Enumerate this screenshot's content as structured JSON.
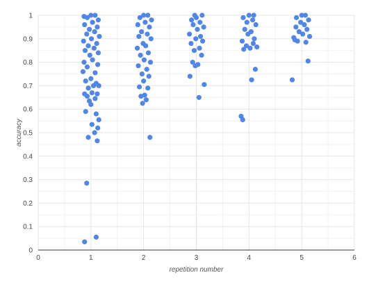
{
  "chart_data": {
    "type": "scatter",
    "title": "",
    "xlabel": "repetition number",
    "ylabel": "accuracy",
    "xlim": [
      0,
      6
    ],
    "ylim": [
      0,
      1
    ],
    "x_ticks": [
      "0",
      "1",
      "2",
      "3",
      "4",
      "5",
      "6"
    ],
    "y_ticks": [
      "0",
      "0.1",
      "0.2",
      "0.3",
      "0.4",
      "0.5",
      "0.6",
      "0.7",
      "0.8",
      "0.9",
      "1"
    ],
    "grid": true,
    "legend": "none",
    "series": [
      {
        "color": "#4f86e8",
        "points": [
          [
            0.88,
            0.035
          ],
          [
            1.1,
            0.055
          ],
          [
            0.92,
            0.285
          ],
          [
            1.12,
            0.465
          ],
          [
            0.95,
            0.48
          ],
          [
            1.07,
            0.5
          ],
          [
            1.13,
            0.52
          ],
          [
            1.02,
            0.535
          ],
          [
            1.15,
            0.555
          ],
          [
            0.9,
            0.59
          ],
          [
            1.1,
            0.58
          ],
          [
            1.0,
            0.62
          ],
          [
            0.97,
            0.635
          ],
          [
            1.08,
            0.645
          ],
          [
            0.93,
            0.655
          ],
          [
            1.12,
            0.665
          ],
          [
            0.88,
            0.665
          ],
          [
            1.02,
            0.67
          ],
          [
            1.05,
            0.7
          ],
          [
            0.95,
            0.69
          ],
          [
            1.15,
            0.7
          ],
          [
            0.9,
            0.72
          ],
          [
            1.1,
            0.71
          ],
          [
            1.0,
            0.73
          ],
          [
            0.85,
            0.76
          ],
          [
            1.08,
            0.755
          ],
          [
            0.93,
            0.78
          ],
          [
            1.13,
            0.79
          ],
          [
            0.87,
            0.8
          ],
          [
            1.03,
            0.81
          ],
          [
            0.98,
            0.83
          ],
          [
            1.14,
            0.84
          ],
          [
            0.89,
            0.85
          ],
          [
            1.06,
            0.86
          ],
          [
            0.95,
            0.87
          ],
          [
            1.11,
            0.88
          ],
          [
            0.86,
            0.89
          ],
          [
            1.01,
            0.9
          ],
          [
            1.16,
            0.91
          ],
          [
            0.92,
            0.92
          ],
          [
            1.07,
            0.93
          ],
          [
            0.97,
            0.94
          ],
          [
            1.12,
            0.95
          ],
          [
            0.88,
            0.96
          ],
          [
            1.03,
            0.97
          ],
          [
            1.14,
            0.98
          ],
          [
            0.93,
            0.99
          ],
          [
            1.0,
            1.0
          ],
          [
            1.08,
            1.0
          ],
          [
            0.87,
            0.995
          ],
          [
            2.12,
            0.48
          ],
          [
            1.98,
            0.625
          ],
          [
            2.05,
            0.64
          ],
          [
            1.95,
            0.655
          ],
          [
            2.02,
            0.66
          ],
          [
            2.08,
            0.69
          ],
          [
            1.92,
            0.695
          ],
          [
            2.0,
            0.72
          ],
          [
            2.1,
            0.74
          ],
          [
            1.97,
            0.75
          ],
          [
            2.06,
            0.77
          ],
          [
            1.9,
            0.785
          ],
          [
            2.13,
            0.8
          ],
          [
            2.01,
            0.81
          ],
          [
            1.94,
            0.83
          ],
          [
            2.09,
            0.84
          ],
          [
            1.88,
            0.86
          ],
          [
            2.04,
            0.87
          ],
          [
            1.99,
            0.88
          ],
          [
            2.14,
            0.9
          ],
          [
            1.91,
            0.91
          ],
          [
            2.07,
            0.92
          ],
          [
            1.96,
            0.93
          ],
          [
            2.11,
            0.95
          ],
          [
            1.89,
            0.96
          ],
          [
            2.03,
            0.97
          ],
          [
            2.15,
            0.98
          ],
          [
            1.93,
            0.99
          ],
          [
            2.0,
            1.0
          ],
          [
            2.08,
            1.0
          ],
          [
            3.15,
            0.705
          ],
          [
            3.05,
            0.65
          ],
          [
            2.88,
            0.74
          ],
          [
            2.98,
            0.785
          ],
          [
            3.03,
            0.79
          ],
          [
            2.93,
            0.8
          ],
          [
            3.1,
            0.83
          ],
          [
            2.96,
            0.85
          ],
          [
            3.06,
            0.86
          ],
          [
            2.9,
            0.88
          ],
          [
            3.12,
            0.89
          ],
          [
            2.99,
            0.9
          ],
          [
            3.08,
            0.91
          ],
          [
            2.87,
            0.92
          ],
          [
            3.02,
            0.94
          ],
          [
            3.14,
            0.95
          ],
          [
            2.94,
            0.96
          ],
          [
            3.07,
            0.97
          ],
          [
            2.91,
            0.98
          ],
          [
            3.0,
            0.99
          ],
          [
            3.11,
            1.0
          ],
          [
            2.97,
            1.0
          ],
          [
            3.85,
            0.57
          ],
          [
            3.88,
            0.555
          ],
          [
            4.05,
            0.725
          ],
          [
            4.12,
            0.77
          ],
          [
            4.15,
            0.865
          ],
          [
            3.9,
            0.855
          ],
          [
            4.02,
            0.86
          ],
          [
            3.95,
            0.87
          ],
          [
            4.08,
            0.88
          ],
          [
            3.87,
            0.89
          ],
          [
            4.1,
            0.9
          ],
          [
            3.98,
            0.92
          ],
          [
            4.04,
            0.93
          ],
          [
            3.92,
            0.94
          ],
          [
            4.13,
            0.96
          ],
          [
            3.96,
            0.97
          ],
          [
            4.07,
            0.98
          ],
          [
            3.89,
            0.99
          ],
          [
            4.0,
            1.0
          ],
          [
            4.09,
            1.0
          ],
          [
            4.82,
            0.725
          ],
          [
            5.12,
            0.805
          ],
          [
            4.87,
            0.895
          ],
          [
            4.92,
            0.89
          ],
          [
            5.08,
            0.885
          ],
          [
            5.15,
            0.91
          ],
          [
            4.85,
            0.905
          ],
          [
            5.02,
            0.92
          ],
          [
            4.95,
            0.93
          ],
          [
            5.1,
            0.94
          ],
          [
            4.89,
            0.95
          ],
          [
            5.05,
            0.96
          ],
          [
            4.98,
            0.97
          ],
          [
            5.13,
            0.98
          ],
          [
            4.9,
            0.99
          ],
          [
            5.0,
            1.0
          ],
          [
            5.07,
            1.0
          ]
        ]
      }
    ]
  }
}
